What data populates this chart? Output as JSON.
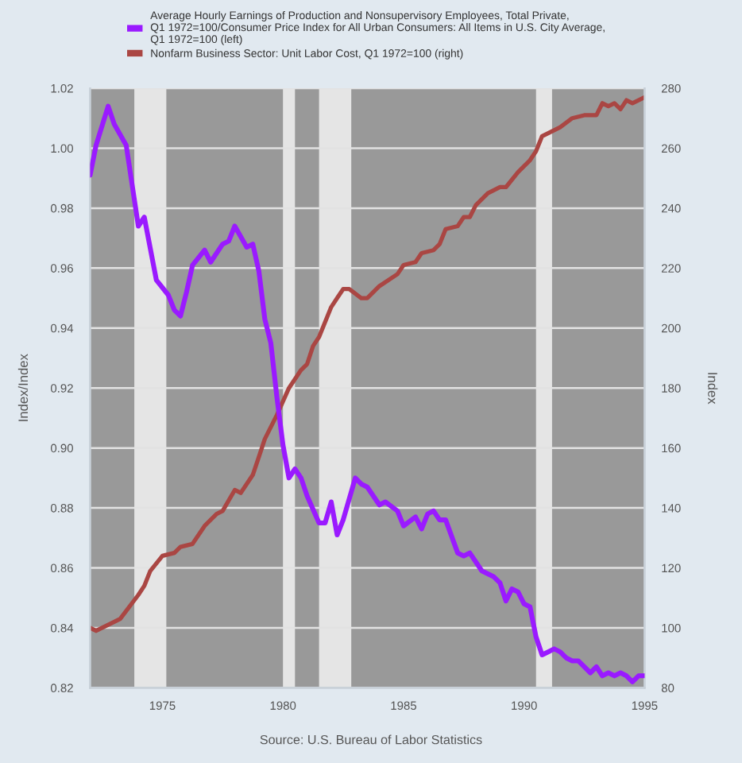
{
  "chart_data": {
    "type": "line",
    "series": [
      {
        "name": "Average Hourly Earnings of Production and Nonsupervisory Employees, Total Private,\nQ1 1972=100/Consumer Price Index for All Urban Consumers: All Items in U.S. City Average,\nQ1 1972=100 (left)",
        "color": "#9a1aff",
        "x": [
          "1972-01",
          "1972-04",
          "1972-10",
          "1973-01",
          "1973-07",
          "1974-01",
          "1974-04",
          "1974-10",
          "1975-04",
          "1975-07",
          "1975-10",
          "1976-01",
          "1976-04",
          "1976-10",
          "1977-01",
          "1977-07",
          "1977-10",
          "1978-01",
          "1978-07",
          "1978-10",
          "1979-01",
          "1979-04",
          "1979-07",
          "1979-10",
          "1980-01",
          "1980-04",
          "1980-07",
          "1980-10",
          "1981-01",
          "1981-07",
          "1981-10",
          "1982-01",
          "1982-04",
          "1982-07",
          "1983-01",
          "1983-04",
          "1983-07",
          "1984-01",
          "1984-04",
          "1984-10",
          "1985-01",
          "1985-07",
          "1985-10",
          "1986-01",
          "1986-04",
          "1986-07",
          "1986-10",
          "1987-04",
          "1987-07",
          "1987-10",
          "1988-01",
          "1988-04",
          "1988-10",
          "1989-01",
          "1989-04",
          "1989-07",
          "1989-10",
          "1990-01",
          "1990-04",
          "1990-07",
          "1990-10",
          "1991-01",
          "1991-04",
          "1991-07",
          "1991-10",
          "1992-01",
          "1992-04",
          "1992-10",
          "1993-01",
          "1993-04",
          "1993-07",
          "1993-10",
          "1994-01",
          "1994-04",
          "1994-07",
          "1994-10",
          "1995-01"
        ],
        "values": [
          0.991,
          1.001,
          1.014,
          1.008,
          1.001,
          0.974,
          0.977,
          0.956,
          0.951,
          0.946,
          0.944,
          0.952,
          0.961,
          0.966,
          0.962,
          0.968,
          0.969,
          0.974,
          0.967,
          0.968,
          0.959,
          0.943,
          0.935,
          0.917,
          0.901,
          0.89,
          0.893,
          0.89,
          0.884,
          0.875,
          0.875,
          0.882,
          0.871,
          0.876,
          0.89,
          0.888,
          0.887,
          0.881,
          0.882,
          0.879,
          0.874,
          0.877,
          0.873,
          0.878,
          0.879,
          0.876,
          0.876,
          0.865,
          0.864,
          0.865,
          0.862,
          0.859,
          0.857,
          0.855,
          0.849,
          0.853,
          0.852,
          0.848,
          0.847,
          0.837,
          0.831,
          0.832,
          0.833,
          0.832,
          0.83,
          0.829,
          0.829,
          0.825,
          0.827,
          0.824,
          0.825,
          0.824,
          0.825,
          0.824,
          0.822,
          0.824,
          0.824
        ]
      },
      {
        "name": "Nonfarm Business Sector: Unit Labor Cost, Q1 1972=100 (right)",
        "color": "#aa4643",
        "axis": "y2",
        "x": [
          "1972-01",
          "1972-04",
          "1972-10",
          "1973-01",
          "1973-04",
          "1974-01",
          "1974-04",
          "1974-07",
          "1975-01",
          "1975-07",
          "1975-10",
          "1976-04",
          "1976-10",
          "1977-04",
          "1977-07",
          "1978-01",
          "1978-04",
          "1978-10",
          "1979-01",
          "1979-04",
          "1979-10",
          "1980-04",
          "1980-10",
          "1981-01",
          "1981-04",
          "1981-07",
          "1982-01",
          "1982-04",
          "1982-07",
          "1982-10",
          "1983-04",
          "1983-07",
          "1984-01",
          "1984-10",
          "1985-01",
          "1985-07",
          "1985-10",
          "1986-04",
          "1986-07",
          "1986-10",
          "1987-04",
          "1987-07",
          "1987-10",
          "1988-01",
          "1988-07",
          "1989-01",
          "1989-04",
          "1989-10",
          "1990-04",
          "1990-07",
          "1990-10",
          "1991-07",
          "1992-01",
          "1992-07",
          "1993-01",
          "1993-04",
          "1993-07",
          "1993-10",
          "1994-01",
          "1994-04",
          "1994-07",
          "1994-10",
          "1995-01"
        ],
        "values": [
          100,
          99,
          101,
          102,
          103,
          111,
          114,
          119,
          124,
          125,
          127,
          128,
          134,
          138,
          139,
          146,
          145,
          151,
          157,
          163,
          171,
          180,
          186,
          188,
          194,
          197,
          207,
          210,
          213,
          213,
          210,
          210,
          214,
          218,
          221,
          222,
          225,
          226,
          228,
          233,
          234,
          237,
          237,
          241,
          245,
          247,
          247,
          252,
          256,
          259,
          264,
          267,
          270,
          271,
          271,
          275,
          274,
          275,
          273,
          276,
          275,
          276,
          277
        ]
      }
    ],
    "xlim": [
      "1972-01-01",
      "1995-01-01"
    ],
    "xticks": [
      "1975",
      "1980",
      "1985",
      "1990",
      "1995"
    ],
    "ylim": [
      0.82,
      1.02
    ],
    "yticks": [
      0.82,
      0.84,
      0.86,
      0.88,
      {
        "value": 0.9,
        "label": "0.90"
      },
      0.92,
      0.94,
      0.96,
      0.98,
      {
        "value": 1.0,
        "label": "1.00"
      },
      1.02
    ],
    "y2lim": [
      80,
      280
    ],
    "y2ticks": [
      80,
      100,
      120,
      140,
      160,
      180,
      200,
      220,
      240,
      260,
      280
    ],
    "ylabel": "Index/Index",
    "y2label": "Index",
    "bands": [
      {
        "axis": "x",
        "from": "1973-11",
        "to": "1975-03",
        "color": "#e5e5e5"
      },
      {
        "axis": "x",
        "from": "1980-01",
        "to": "1980-07",
        "color": "#e5e5e5"
      },
      {
        "axis": "x",
        "from": "1981-07",
        "to": "1982-11",
        "color": "#e5e5e5"
      },
      {
        "axis": "x",
        "from": "1990-07",
        "to": "1991-03",
        "color": "#e5e5e5"
      }
    ],
    "annotations": [
      "Source: U.S. Bureau of Labor Statistics"
    ],
    "grid": "y",
    "legend": "top"
  }
}
